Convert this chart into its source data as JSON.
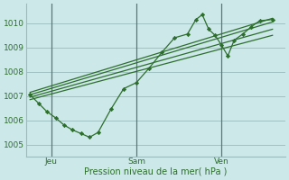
{
  "background_color": "#cce8e8",
  "grid_color": "#99bbbb",
  "line_color": "#2d6e2d",
  "ylabel_ticks": [
    1005,
    1006,
    1007,
    1008,
    1009,
    1010
  ],
  "xlabel": "Pression niveau de la mer( hPa )",
  "xlabels": [
    "Jeu",
    "Sam",
    "Ven"
  ],
  "xlabels_pos": [
    0.5,
    2.5,
    4.5
  ],
  "vline_pos": [
    0.5,
    2.5,
    4.5
  ],
  "figsize": [
    3.2,
    2.0
  ],
  "dpi": 100,
  "ylim": [
    1004.5,
    1010.8
  ],
  "xlim": [
    -0.1,
    6.0
  ],
  "line_jagged": [
    [
      0.0,
      1007.05
    ],
    [
      0.2,
      1006.7
    ],
    [
      0.4,
      1006.35
    ],
    [
      0.6,
      1006.1
    ],
    [
      0.8,
      1005.8
    ],
    [
      1.0,
      1005.6
    ],
    [
      1.2,
      1005.45
    ],
    [
      1.4,
      1005.3
    ],
    [
      1.6,
      1005.5
    ],
    [
      1.9,
      1006.45
    ],
    [
      2.2,
      1007.3
    ],
    [
      2.5,
      1007.55
    ],
    [
      2.8,
      1008.15
    ],
    [
      3.1,
      1008.8
    ],
    [
      3.4,
      1009.4
    ],
    [
      3.7,
      1009.55
    ],
    [
      3.9,
      1010.15
    ],
    [
      4.05,
      1010.35
    ],
    [
      4.2,
      1009.75
    ],
    [
      4.35,
      1009.5
    ],
    [
      4.5,
      1009.1
    ],
    [
      4.65,
      1008.65
    ],
    [
      4.8,
      1009.3
    ],
    [
      5.0,
      1009.55
    ],
    [
      5.2,
      1009.85
    ],
    [
      5.4,
      1010.1
    ],
    [
      5.7,
      1010.15
    ]
  ],
  "line_straight1": [
    [
      0.0,
      1006.85
    ],
    [
      5.7,
      1009.5
    ]
  ],
  "line_straight2": [
    [
      0.0,
      1006.95
    ],
    [
      5.7,
      1009.75
    ]
  ],
  "line_straight3": [
    [
      0.0,
      1007.05
    ],
    [
      5.7,
      1010.05
    ]
  ],
  "line_straight4": [
    [
      0.0,
      1007.15
    ],
    [
      5.7,
      1010.2
    ]
  ]
}
